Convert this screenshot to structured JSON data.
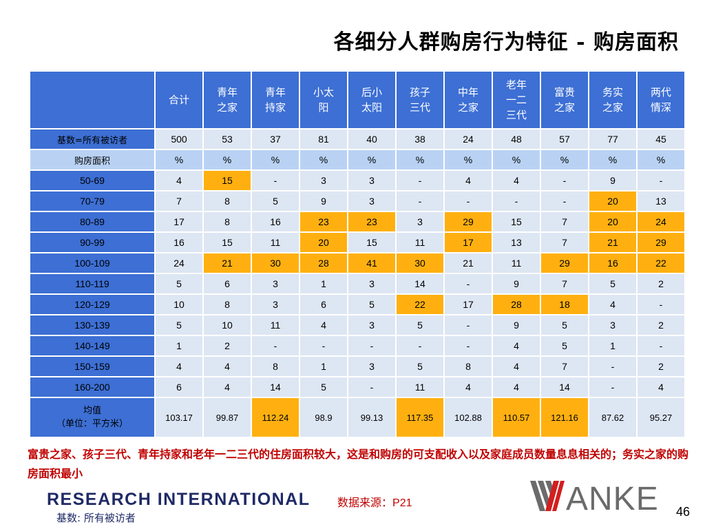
{
  "title": "各细分人群购房行为特征 - 购房面积",
  "table": {
    "columns": [
      "合计",
      "青年之家",
      "青年持家",
      "小太阳",
      "后小太阳",
      "孩子三代",
      "中年之家",
      "老年一二三代",
      "富贵之家",
      "务实之家",
      "两代情深"
    ],
    "column_lines": [
      [
        "合计"
      ],
      [
        "青年",
        "之家"
      ],
      [
        "青年",
        "持家"
      ],
      [
        "小太",
        "阳"
      ],
      [
        "后小",
        "太阳"
      ],
      [
        "孩子",
        "三代"
      ],
      [
        "中年",
        "之家"
      ],
      [
        "老年",
        "一二",
        "三代"
      ],
      [
        "富贵",
        "之家"
      ],
      [
        "务实",
        "之家"
      ],
      [
        "两代",
        "情深"
      ]
    ],
    "base_row": {
      "label": "基数=所有被访者",
      "values": [
        "500",
        "53",
        "37",
        "81",
        "40",
        "38",
        "24",
        "48",
        "57",
        "77",
        "45"
      ]
    },
    "unit_row": {
      "label": "购房面积",
      "values": [
        "%",
        "%",
        "%",
        "%",
        "%",
        "%",
        "%",
        "%",
        "%",
        "%",
        "%"
      ]
    },
    "rows": [
      {
        "label": "50-69",
        "values": [
          "4",
          "15",
          "-",
          "3",
          "3",
          "-",
          "4",
          "4",
          "-",
          "9",
          "-"
        ],
        "highlight": [
          1
        ]
      },
      {
        "label": "70-79",
        "values": [
          "7",
          "8",
          "5",
          "9",
          "3",
          "-",
          "-",
          "-",
          "-",
          "20",
          "13"
        ],
        "highlight": [
          9
        ]
      },
      {
        "label": "80-89",
        "values": [
          "17",
          "8",
          "16",
          "23",
          "23",
          "3",
          "29",
          "15",
          "7",
          "20",
          "24"
        ],
        "highlight": [
          3,
          4,
          6,
          9,
          10
        ]
      },
      {
        "label": "90-99",
        "values": [
          "16",
          "15",
          "11",
          "20",
          "15",
          "11",
          "17",
          "13",
          "7",
          "21",
          "29"
        ],
        "highlight": [
          3,
          6,
          9,
          10
        ]
      },
      {
        "label": "100-109",
        "values": [
          "24",
          "21",
          "30",
          "28",
          "41",
          "30",
          "21",
          "11",
          "29",
          "16",
          "22"
        ],
        "highlight": [
          1,
          2,
          3,
          4,
          5,
          8,
          9,
          10
        ]
      },
      {
        "label": "110-119",
        "values": [
          "5",
          "6",
          "3",
          "1",
          "3",
          "14",
          "-",
          "9",
          "7",
          "5",
          "2"
        ],
        "highlight": []
      },
      {
        "label": "120-129",
        "values": [
          "10",
          "8",
          "3",
          "6",
          "5",
          "22",
          "17",
          "28",
          "18",
          "4",
          "-"
        ],
        "highlight": [
          5,
          7,
          8
        ]
      },
      {
        "label": "130-139",
        "values": [
          "5",
          "10",
          "11",
          "4",
          "3",
          "5",
          "-",
          "9",
          "5",
          "3",
          "2"
        ],
        "highlight": []
      },
      {
        "label": "140-149",
        "values": [
          "1",
          "2",
          "-",
          "-",
          "-",
          "-",
          "-",
          "4",
          "5",
          "1",
          "-"
        ],
        "highlight": []
      },
      {
        "label": "150-159",
        "values": [
          "4",
          "4",
          "8",
          "1",
          "3",
          "5",
          "8",
          "4",
          "7",
          "-",
          "2"
        ],
        "highlight": []
      },
      {
        "label": "160-200",
        "values": [
          "6",
          "4",
          "14",
          "5",
          "-",
          "11",
          "4",
          "4",
          "14",
          "-",
          "4"
        ],
        "highlight": []
      }
    ],
    "average_row": {
      "label_line1": "均值",
      "label_line2": "（单位：平方米）",
      "values": [
        "103.17",
        "99.87",
        "112.24",
        "98.9",
        "99.13",
        "117.35",
        "102.88",
        "110.57",
        "121.16",
        "87.62",
        "95.27"
      ],
      "highlight": [
        2,
        5,
        7,
        8
      ]
    }
  },
  "highlight_color": "#ffb010",
  "header_color": "#3d6fd4",
  "cell_color": "#dde6f3",
  "note": "富贵之家、孩子三代、青年持家和老年一二三代的住房面积较大，这是和购房的可支配收入以及家庭成员数量息息相关的；务实之家的购房面积最小",
  "footer": {
    "logo_text": "RESEARCH INTERNATIONAL",
    "base_text": "基数: 所有被访者",
    "source_label": "数据来源：",
    "source_page": "P21",
    "brand_logo": "VANKE",
    "page_number": "46"
  }
}
